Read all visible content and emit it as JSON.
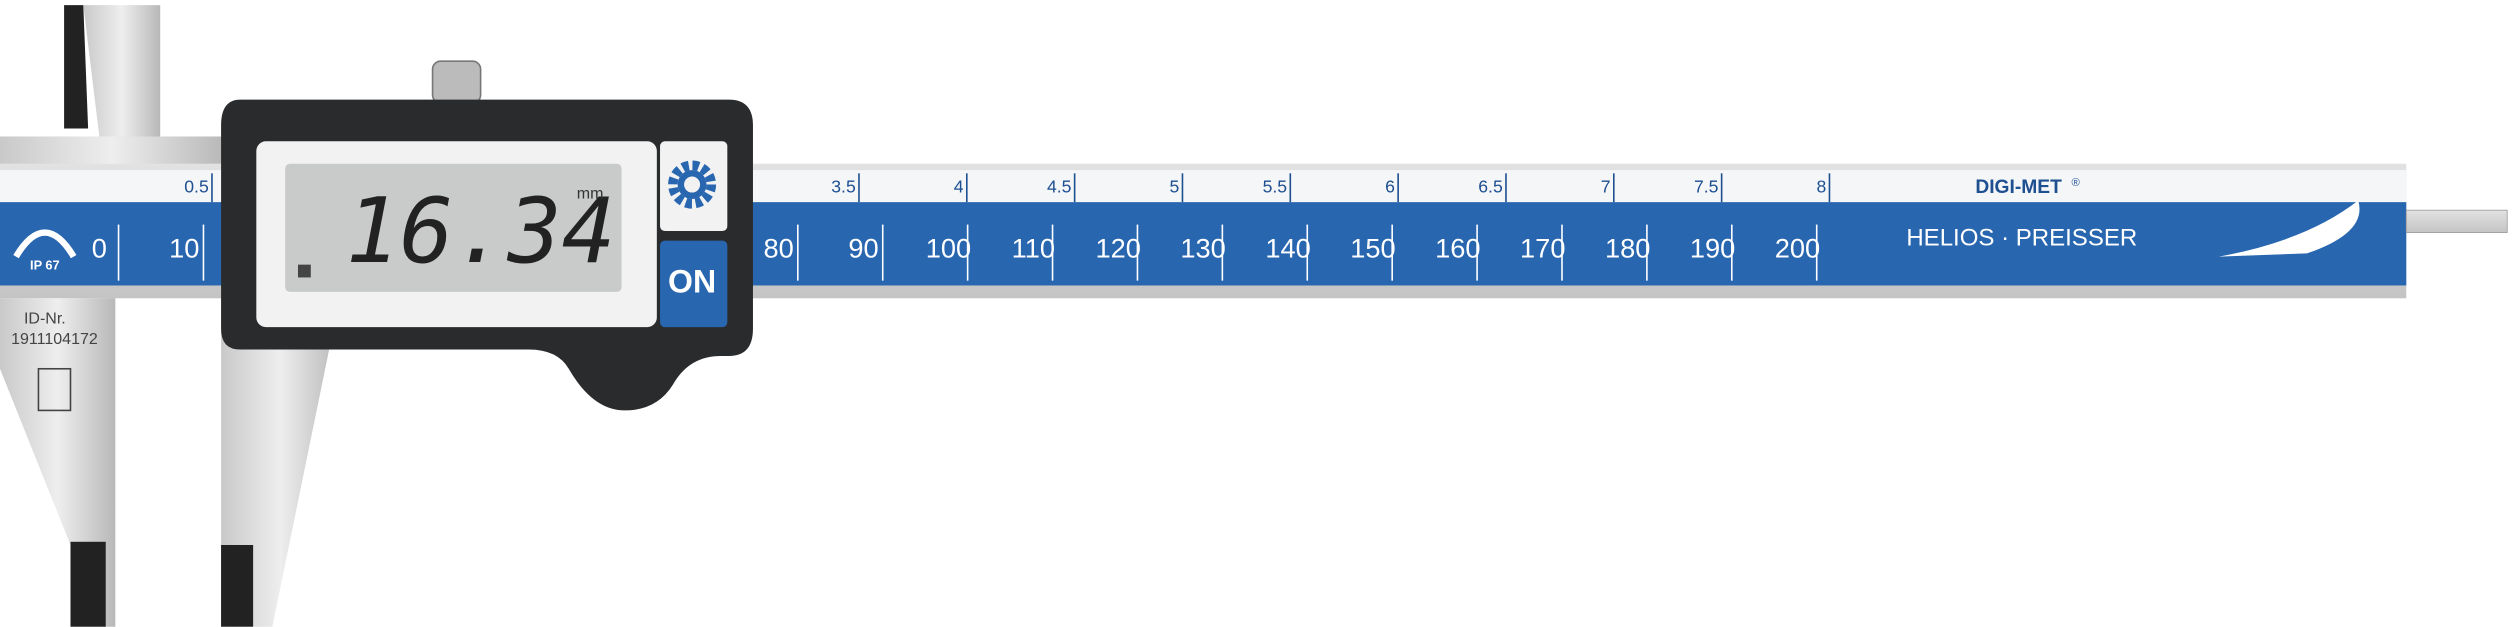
{
  "scale": {
    "inch_labels": [
      0.5,
      3.5,
      4,
      4.5,
      5,
      5.5,
      6,
      6.5,
      7,
      7.5,
      8
    ],
    "mm_labels": [
      0,
      10,
      80,
      90,
      100,
      110,
      120,
      130,
      140,
      150,
      160,
      170,
      180,
      190,
      200
    ]
  },
  "display": {
    "reading": "16.34",
    "unit": "mm",
    "button": "ON"
  },
  "branding": {
    "model": "DIGI-MET",
    "registered": "®",
    "maker": "HELIOS · PREISSER",
    "rating": "IP 67"
  },
  "marking": {
    "id_label": "ID-Nr.",
    "id_number": "1911104172"
  }
}
